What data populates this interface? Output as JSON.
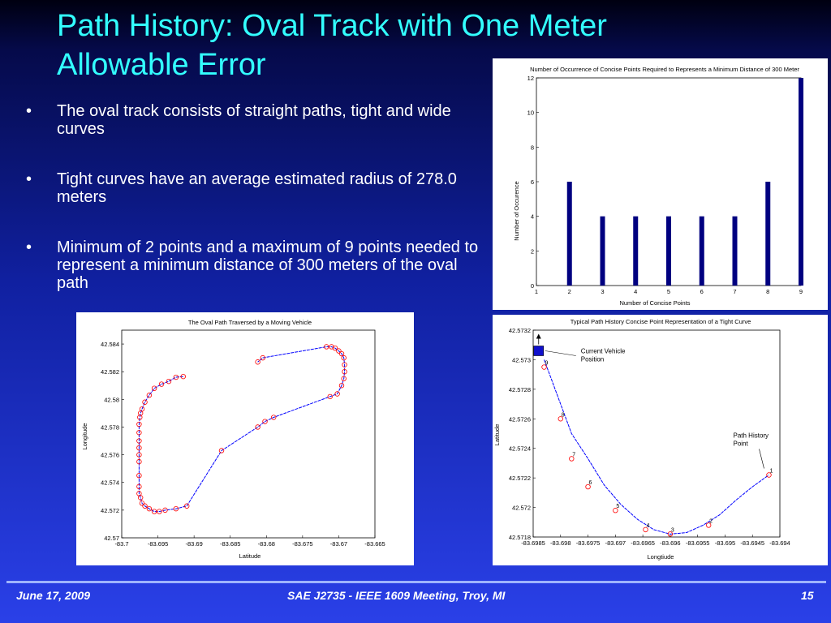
{
  "slide": {
    "title": "Path History: Oval Track with One Meter Allowable Error",
    "bullets": [
      "The oval track consists of straight paths, tight and wide curves",
      "Tight curves have an average estimated radius of 278.0 meters",
      "Minimum of 2 points and a maximum of 9 points needed to represent a minimum distance of 300 meters of the oval path"
    ],
    "bullet_glyph": "•",
    "footer": {
      "date": "June 17, 2009",
      "event": "SAE J2735 - IEEE 1609 Meeting, Troy, MI",
      "page": "15"
    },
    "colors": {
      "title": "#33ffff",
      "text": "#ffffff",
      "bar": "#000080",
      "path": "#0000ff",
      "point": "#ff0000"
    }
  },
  "chart_data": [
    {
      "type": "bar",
      "title": "Number of Occurrence of Concise Points Required to Represents a Minimum Distance of 300 Meter",
      "xlabel": "Number of Concise Points",
      "ylabel": "Number of Occurence",
      "categories": [
        2,
        3,
        4,
        5,
        6,
        7,
        8,
        9
      ],
      "values": [
        6,
        4,
        4,
        4,
        4,
        4,
        6,
        12
      ],
      "xlim": [
        1,
        9
      ],
      "ylim": [
        0,
        12
      ],
      "xticks": [
        "1",
        "2",
        "3",
        "4",
        "5",
        "6",
        "7",
        "8",
        "9"
      ],
      "yticks": [
        "0",
        "2",
        "4",
        "6",
        "8",
        "10",
        "12"
      ]
    },
    {
      "type": "line",
      "title": "The Oval Path Traversed by a Moving Vehicle",
      "xlabel": "Latitude",
      "ylabel": "Longitude",
      "xlim": [
        -83.7,
        -83.665
      ],
      "ylim": [
        42.57,
        42.585
      ],
      "xticks": [
        "-83.7",
        "-83.695",
        "-83.69",
        "-83.685",
        "-83.68",
        "-83.675",
        "-83.67",
        "-83.665"
      ],
      "yticks": [
        "42.57",
        "42.572",
        "42.574",
        "42.576",
        "42.578",
        "42.58",
        "42.582",
        "42.584"
      ],
      "x": [
        -83.6915,
        -83.6925,
        -83.6935,
        -83.6945,
        -83.6955,
        -83.6962,
        -83.6968,
        -83.6972,
        -83.6974,
        -83.6975,
        -83.6976,
        -83.6976,
        -83.6976,
        -83.6976,
        -83.6976,
        -83.6976,
        -83.6976,
        -83.6976,
        -83.6976,
        -83.6974,
        -83.6972,
        -83.6968,
        -83.6962,
        -83.6955,
        -83.6948,
        -83.694,
        -83.6925,
        -83.691,
        -83.6862,
        -83.6812,
        -83.6802,
        -83.679,
        -83.6712,
        -83.6702,
        -83.6696,
        -83.6693,
        -83.6692,
        -83.6692,
        -83.6693,
        -83.6696,
        -83.67,
        -83.6705,
        -83.671,
        -83.6717,
        -83.6805,
        -83.6812
      ],
      "y": [
        42.58165,
        42.5816,
        42.5813,
        42.5811,
        42.5808,
        42.5803,
        42.5798,
        42.5793,
        42.579,
        42.5787,
        42.5782,
        42.5776,
        42.577,
        42.5765,
        42.576,
        42.5755,
        42.5745,
        42.5737,
        42.5732,
        42.5729,
        42.5725,
        42.5723,
        42.5721,
        42.5719,
        42.5719,
        42.572,
        42.5721,
        42.5723,
        42.5763,
        42.578,
        42.5784,
        42.5787,
        42.5802,
        42.5804,
        42.581,
        42.5815,
        42.582,
        42.5825,
        42.583,
        42.5833,
        42.5835,
        42.5837,
        42.5838,
        42.5838,
        42.583,
        42.5827
      ]
    },
    {
      "type": "line",
      "title": "Typical Path History Concise Point Representation of a Tight Curve",
      "xlabel": "Longtiude",
      "ylabel": "Latitude",
      "xlim": [
        -83.6985,
        -83.694
      ],
      "ylim": [
        42.5718,
        42.5732
      ],
      "xticks": [
        "-83.6985",
        "-83.698",
        "-83.6975",
        "-83.697",
        "-83.6965",
        "-83.696",
        "-83.6955",
        "-83.695",
        "-83.6945",
        "-83.694"
      ],
      "yticks": [
        "42.5718",
        "42.572",
        "42.5722",
        "42.5724",
        "42.5726",
        "42.5728",
        "42.573",
        "42.5732"
      ],
      "path_x": [
        -83.6983,
        -83.6982,
        -83.698,
        -83.6978,
        -83.6975,
        -83.6972,
        -83.6969,
        -83.6966,
        -83.6963,
        -83.696,
        -83.6957,
        -83.6954,
        -83.6951,
        -83.6948,
        -83.6945,
        -83.6942
      ],
      "path_y": [
        42.573,
        42.5729,
        42.5727,
        42.5725,
        42.57233,
        42.57215,
        42.57202,
        42.57192,
        42.57185,
        42.57182,
        42.57183,
        42.57188,
        42.57195,
        42.57205,
        42.57214,
        42.57222
      ],
      "points": [
        {
          "label": "1",
          "x": -83.6942,
          "y": 42.57222
        },
        {
          "label": "2",
          "x": -83.6953,
          "y": 42.57188
        },
        {
          "label": "3",
          "x": -83.696,
          "y": 42.57182
        },
        {
          "label": "4",
          "x": -83.69645,
          "y": 42.57185
        },
        {
          "label": "5",
          "x": -83.697,
          "y": 42.57198
        },
        {
          "label": "6",
          "x": -83.6975,
          "y": 42.57214
        },
        {
          "label": "7",
          "x": -83.6978,
          "y": 42.57233
        },
        {
          "label": "8",
          "x": -83.698,
          "y": 42.5726
        },
        {
          "label": "9",
          "x": -83.6983,
          "y": 42.57295
        }
      ],
      "vehicle": {
        "x": -83.6984,
        "y": 42.57306
      },
      "annotations": [
        {
          "label": "Current Vehicle Position"
        },
        {
          "label": "Path History Point"
        }
      ]
    }
  ]
}
